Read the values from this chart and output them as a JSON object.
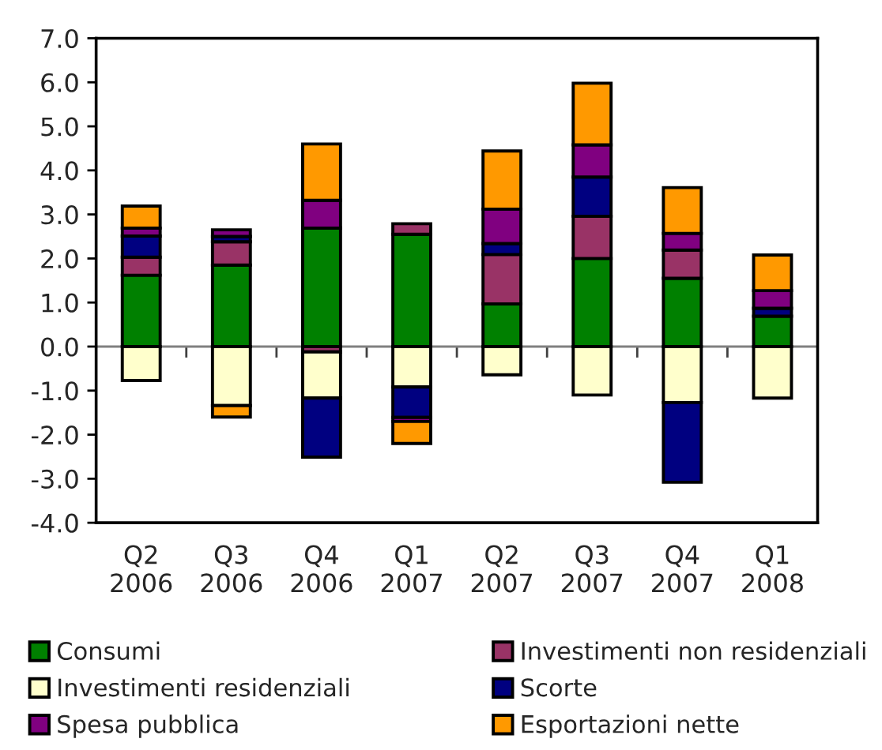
{
  "chart_data": {
    "type": "bar",
    "stacked": true,
    "categories": [
      "Q2\n2006",
      "Q3\n2006",
      "Q4\n2006",
      "Q1\n2007",
      "Q2\n2007",
      "Q3\n2007",
      "Q4\n2007",
      "Q1\n2008"
    ],
    "series": [
      {
        "name": "Consumi",
        "color": "#008000",
        "values": [
          1.62,
          1.85,
          2.69,
          2.55,
          0.97,
          2.0,
          1.55,
          0.69
        ]
      },
      {
        "name": "Investimenti non residenziali",
        "color": "#993366",
        "values": [
          0.41,
          0.53,
          -0.12,
          0.24,
          1.12,
          0.96,
          0.64,
          null
        ]
      },
      {
        "name": "Investimenti residenziali",
        "color": "#ffffcc",
        "values": [
          -0.77,
          -1.34,
          -1.05,
          -0.92,
          -0.64,
          -1.1,
          -1.27,
          -1.17
        ]
      },
      {
        "name": "Scorte",
        "color": "#000080",
        "values": [
          0.48,
          0.12,
          -1.34,
          -0.69,
          0.25,
          0.89,
          -1.81,
          0.18
        ]
      },
      {
        "name": "Spesa pubblica",
        "color": "#800080",
        "values": [
          0.18,
          0.15,
          0.63,
          -0.09,
          0.78,
          0.73,
          0.38,
          0.4
        ]
      },
      {
        "name": "Esportazioni nette",
        "color": "#ff9900",
        "values": [
          0.5,
          -0.26,
          1.28,
          -0.5,
          1.32,
          1.4,
          1.04,
          0.81
        ]
      }
    ],
    "ylim": [
      -4,
      7
    ],
    "yticks": [
      {
        "value": -4,
        "label": "-4.0"
      },
      {
        "value": -3,
        "label": "-3.0"
      },
      {
        "value": -2,
        "label": "-2.0"
      },
      {
        "value": -1,
        "label": "-1.0"
      },
      {
        "value": 0,
        "label": "0.0"
      },
      {
        "value": 1,
        "label": "1.0"
      },
      {
        "value": 2,
        "label": "2.0"
      },
      {
        "value": 3,
        "label": "3.0"
      },
      {
        "value": 4,
        "label": "4.0"
      },
      {
        "value": 5,
        "label": "5.0"
      },
      {
        "value": 6,
        "label": "6.0"
      },
      {
        "value": 7,
        "label": "7.0"
      }
    ],
    "ref_lines": [
      {
        "axis": "y",
        "value": 0,
        "color": "#808080"
      }
    ],
    "legend": "bottom"
  }
}
